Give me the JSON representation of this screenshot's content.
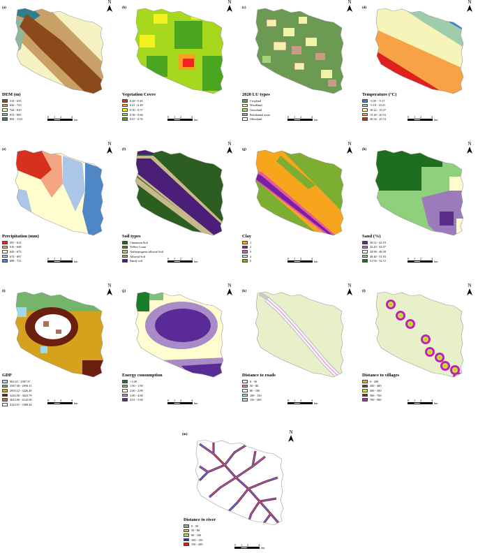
{
  "colors": {
    "dem": [
      "#8b4a1c",
      "#c9a166",
      "#f6f2c4",
      "#8fb79d",
      "#2f7f92"
    ],
    "veg": [
      "#f0261c",
      "#f6a21e",
      "#f4f21e",
      "#a6d81e",
      "#4aa61e"
    ],
    "lu": [
      "#6b9a52",
      "#f2f2a8",
      "#a6d27a",
      "#c79b86",
      "#ffffff"
    ],
    "temp": [
      "#2f86c8",
      "#9fcdab",
      "#f6f4b8",
      "#f7a245",
      "#e0201e"
    ],
    "precip": [
      "#d7301f",
      "#f4a582",
      "#fffdd0",
      "#abc6e6",
      "#4f87c6"
    ],
    "soil": [
      "#2b5e20",
      "#587f3a",
      "#c7b98a",
      "#96b25a",
      "#4b1f78"
    ],
    "clay": [
      "#f6a51c",
      "#7b1fa2",
      "#e65aa0",
      "#bfe7f2",
      "#7cae32"
    ],
    "sand": [
      "#5a2b8a",
      "#9c7bbd",
      "#fffdd0",
      "#8fd07c",
      "#1f6e1f"
    ],
    "gdp": [
      "#9ed8ea",
      "#74b56b",
      "#d4a21c",
      "#6b1f0f",
      "#a8735a",
      "#ffffff"
    ],
    "energy": [
      "#1a7d2a",
      "#7cc27a",
      "#fffdd0",
      "#a98cc7",
      "#5a2b96"
    ],
    "roads": [
      "#e7f0c8",
      "#e87fd6",
      "#f7f7f7",
      "#c9c9c9",
      "#8ee0ea"
    ],
    "villages": [
      "#f6a51c",
      "#4f4f4f",
      "#bde63a",
      "#7b2b0f",
      "#c21fbd"
    ],
    "river": [
      "#9aa0a6",
      "#e0c24a",
      "#a9d93a",
      "#2b2bb8",
      "#d21f1f"
    ]
  },
  "scale": {
    "ticks": [
      "0",
      "1",
      "2",
      "4"
    ],
    "unit": "km"
  },
  "north_label": "N",
  "panels": {
    "a": {
      "label": "(a)",
      "title": "DEM (m)",
      "legend": [
        "514 - 635",
        "636 - 723",
        "724 - 810",
        "813 - 895",
        "894 - 1113"
      ]
    },
    "b": {
      "label": "(b)",
      "title": "Vegetation Covre",
      "legend": [
        "0.28 - 0.40",
        "0.41 - 0.49",
        "0.50 - 0.57",
        "0.58 - 0.66",
        "0.67 - 0.76"
      ]
    },
    "c": {
      "label": "(c)",
      "title": "2020 LU types",
      "legend": [
        "Cropland",
        "Woodland",
        "Grassland",
        "Residential areas",
        "Otherland"
      ]
    },
    "d": {
      "label": "(d)",
      "title": "Temperature (°C)",
      "legend": [
        "-3.00 - -5.17",
        "-5.18 - 10.21",
        "10.22 - 15.27",
        "15.28 - 20.53",
        "20.54 - 25.74"
      ]
    },
    "e": {
      "label": "(e)",
      "title": "Precipitation (mm)",
      "legend": [
        "597 - 615",
        "616 - 648",
        "649 - 673",
        "674 - 697",
        "698 - 721"
      ]
    },
    "f": {
      "label": "(f)",
      "title": "Soil types",
      "legend": [
        "Cinnamon Soil",
        "Yellow Loam",
        "Anthropogenic-alluvial Soil",
        "Alluvial Soil",
        "Sandy soil"
      ]
    },
    "g": {
      "label": "(g)",
      "title": "Clay",
      "legend": [
        "1",
        "2",
        "3",
        "4",
        "5"
      ]
    },
    "h": {
      "label": "(h)",
      "title": "Sand (%)",
      "legend": [
        "39.52 - 42.19",
        "42.20 - 44.97",
        "44.98 - 48.39",
        "48.40 - 51.93",
        "51.94 - 54.72"
      ]
    },
    "i": {
      "label": "(i)",
      "title": "GDP",
      "legend": [
        "963.63 - 2587.37",
        "2587.38 - 2950.11",
        "2950.12 - 3226.49",
        "3226.50 - 3623.79",
        "3623.80 - 4142.00",
        "4142.01 - 5368.44"
      ]
    },
    "j": {
      "label": "(j)",
      "title": "Energy consumption",
      "legend": [
        "<1.00",
        "1.00 - 1.99",
        "2.00 - 2.99",
        "3.00 - 4.00",
        "4.01 - 5.00"
      ]
    },
    "k": {
      "label": "(k)",
      "title": "Distance to roads",
      "legend": [
        "0 - 30",
        "50 - 80",
        "80 - 100",
        "100 - 150",
        "150 - 200"
      ]
    },
    "l": {
      "label": "(l)",
      "title": "Distance to villages",
      "legend": [
        "0 - 200",
        "200 - 400",
        "400 - 500",
        "500 - 700",
        "700 - 900"
      ]
    },
    "m": {
      "label": "(m)",
      "title": "Distance to river",
      "legend": [
        "0 - 50",
        "50 - 80",
        "80 - 100",
        "100 - 150",
        "150 - 200"
      ]
    }
  }
}
